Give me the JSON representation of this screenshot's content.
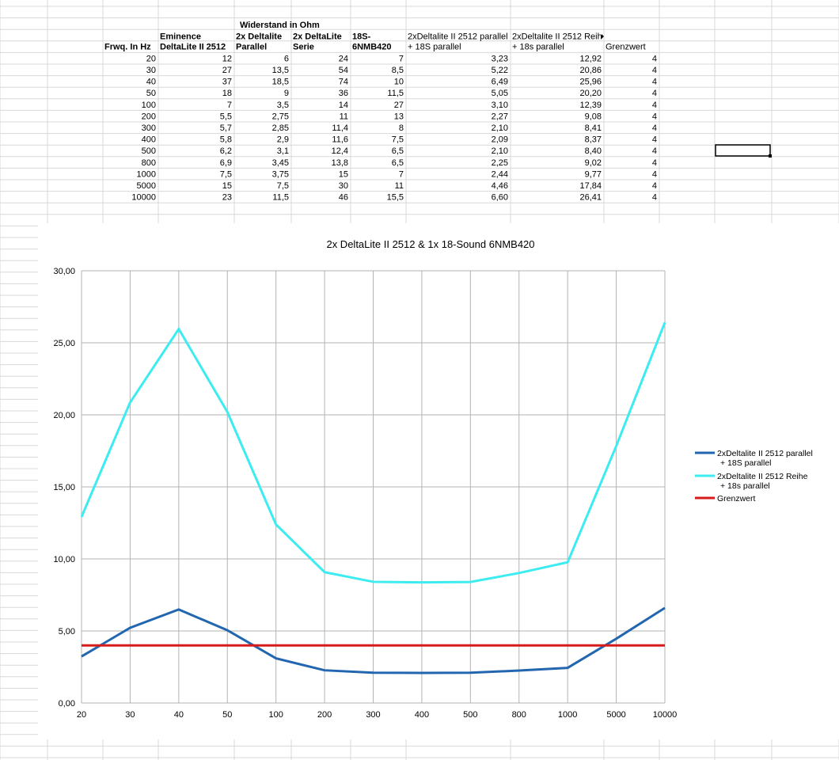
{
  "table": {
    "group_header": "Widerstand in Ohm",
    "header": [
      [
        "Frwq. In Hz"
      ],
      [
        "Eminence",
        "DeltaLite II 2512"
      ],
      [
        "2x Deltalite",
        "Parallel"
      ],
      [
        "2x DeltaLite",
        "Serie"
      ],
      [
        "18S-",
        "6NMB420"
      ],
      [
        "2xDeltalite II 2512 parallel",
        "+ 18S parallel"
      ],
      [
        "2xDeltalite II 2512 Reihe",
        "+ 18s parallel"
      ],
      [
        "Grenzwert"
      ]
    ],
    "rows": [
      [
        "20",
        "12",
        "6",
        "24",
        "7",
        "3,23",
        "12,92",
        "4"
      ],
      [
        "30",
        "27",
        "13,5",
        "54",
        "8,5",
        "5,22",
        "20,86",
        "4"
      ],
      [
        "40",
        "37",
        "18,5",
        "74",
        "10",
        "6,49",
        "25,96",
        "4"
      ],
      [
        "50",
        "18",
        "9",
        "36",
        "11,5",
        "5,05",
        "20,20",
        "4"
      ],
      [
        "100",
        "7",
        "3,5",
        "14",
        "27",
        "3,10",
        "12,39",
        "4"
      ],
      [
        "200",
        "5,5",
        "2,75",
        "11",
        "13",
        "2,27",
        "9,08",
        "4"
      ],
      [
        "300",
        "5,7",
        "2,85",
        "11,4",
        "8",
        "2,10",
        "8,41",
        "4"
      ],
      [
        "400",
        "5,8",
        "2,9",
        "11,6",
        "7,5",
        "2,09",
        "8,37",
        "4"
      ],
      [
        "500",
        "6,2",
        "3,1",
        "12,4",
        "6,5",
        "2,10",
        "8,40",
        "4"
      ],
      [
        "800",
        "6,9",
        "3,45",
        "13,8",
        "6,5",
        "2,25",
        "9,02",
        "4"
      ],
      [
        "1000",
        "7,5",
        "3,75",
        "15",
        "7",
        "2,44",
        "9,77",
        "4"
      ],
      [
        "5000",
        "15",
        "7,5",
        "30",
        "11",
        "4,46",
        "17,84",
        "4"
      ],
      [
        "10000",
        "23",
        "11,5",
        "46",
        "15,5",
        "6,60",
        "26,41",
        "4"
      ]
    ]
  },
  "chart_data": {
    "type": "line",
    "title": "2x DeltaLite II 2512 & 1x 18-Sound 6NMB420",
    "categories": [
      "20",
      "30",
      "40",
      "50",
      "100",
      "200",
      "300",
      "400",
      "500",
      "800",
      "1000",
      "5000",
      "10000"
    ],
    "series": [
      {
        "name": "2xDeltalite II 2512 parallel + 18S parallel",
        "color": "#2366b0",
        "values": [
          3.23,
          5.22,
          6.49,
          5.05,
          3.1,
          2.27,
          2.1,
          2.09,
          2.1,
          2.25,
          2.44,
          4.46,
          6.6
        ]
      },
      {
        "name": "2xDeltalite II 2512 Reihe + 18s parallel",
        "color": "#3cecf0",
        "values": [
          12.92,
          20.86,
          25.96,
          20.2,
          12.39,
          9.08,
          8.41,
          8.37,
          8.4,
          9.02,
          9.77,
          17.84,
          26.41
        ]
      },
      {
        "name": "Grenzwert",
        "color": "#d71a1a",
        "values": [
          4,
          4,
          4,
          4,
          4,
          4,
          4,
          4,
          4,
          4,
          4,
          4,
          4
        ]
      }
    ],
    "ylim": [
      0,
      30
    ],
    "yticks": [
      {
        "value": 0,
        "label": "0,00"
      },
      {
        "value": 5,
        "label": "5,00"
      },
      {
        "value": 10,
        "label": "10,00"
      },
      {
        "value": 15,
        "label": "15,00"
      },
      {
        "value": 20,
        "label": "20,00"
      },
      {
        "value": 25,
        "label": "25,00"
      },
      {
        "value": 30,
        "label": "30,00"
      }
    ],
    "grid": true,
    "legend": "right"
  }
}
